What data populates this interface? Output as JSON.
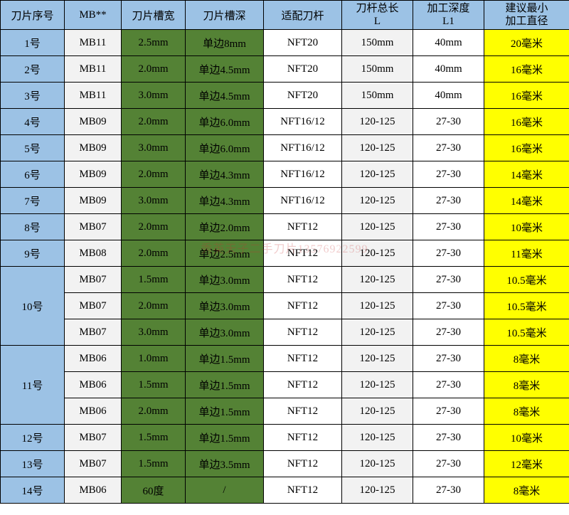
{
  "table": {
    "headers": [
      "刀片序号",
      "MB**",
      "刀片槽宽",
      "刀片槽深",
      "适配刀杆",
      "刀杆总长\nL",
      "加工深度\nL1",
      "建议最小\n加工直径"
    ],
    "col_widths": [
      "90px",
      "80px",
      "90px",
      "110px",
      "110px",
      "100px",
      "100px",
      "120px"
    ],
    "header_bg": "#9cc2e5",
    "colors": {
      "seq_bg": "#9cc2e5",
      "mb_bg": "#f2f2f2",
      "slot_bg": "#548235",
      "bar_bg": "#ffffff",
      "len_bg": "#f2f2f2",
      "l1_bg": "#ffffff",
      "min_bg": "#ffff00",
      "border": "#000000"
    },
    "rows": [
      {
        "seq": "1号",
        "mb": "MB11",
        "w": "2.5mm",
        "d": "单边8mm",
        "bar": "NFT20",
        "len": "150mm",
        "l1": "40mm",
        "min": "20毫米"
      },
      {
        "seq": "2号",
        "mb": "MB11",
        "w": "2.0mm",
        "d": "单边4.5mm",
        "bar": "NFT20",
        "len": "150mm",
        "l1": "40mm",
        "min": "16毫米"
      },
      {
        "seq": "3号",
        "mb": "MB11",
        "w": "3.0mm",
        "d": "单边4.5mm",
        "bar": "NFT20",
        "len": "150mm",
        "l1": "40mm",
        "min": "16毫米"
      },
      {
        "seq": "4号",
        "mb": "MB09",
        "w": "2.0mm",
        "d": "单边6.0mm",
        "bar": "NFT16/12",
        "len": "120-125",
        "l1": "27-30",
        "min": "16毫米"
      },
      {
        "seq": "5号",
        "mb": "MB09",
        "w": "3.0mm",
        "d": "单边6.0mm",
        "bar": "NFT16/12",
        "len": "120-125",
        "l1": "27-30",
        "min": "16毫米"
      },
      {
        "seq": "6号",
        "mb": "MB09",
        "w": "2.0mm",
        "d": "单边4.3mm",
        "bar": "NFT16/12",
        "len": "120-125",
        "l1": "27-30",
        "min": "14毫米"
      },
      {
        "seq": "7号",
        "mb": "MB09",
        "w": "3.0mm",
        "d": "单边4.3mm",
        "bar": "NFT16/12",
        "len": "120-125",
        "l1": "27-30",
        "min": "14毫米"
      },
      {
        "seq": "8号",
        "mb": "MB07",
        "w": "2.0mm",
        "d": "单边2.0mm",
        "bar": "NFT12",
        "len": "120-125",
        "l1": "27-30",
        "min": "10毫米"
      },
      {
        "seq": "9号",
        "mb": "MB08",
        "w": "2.0mm",
        "d": "单边2.5mm",
        "bar": "NFT12",
        "len": "120-125",
        "l1": "27-30",
        "min": "11毫米"
      },
      {
        "seq": "10号",
        "span": 3,
        "sub": [
          {
            "mb": "MB07",
            "w": "1.5mm",
            "d": "单边3.0mm",
            "bar": "NFT12",
            "len": "120-125",
            "l1": "27-30",
            "min": "10.5毫米"
          },
          {
            "mb": "MB07",
            "w": "2.0mm",
            "d": "单边3.0mm",
            "bar": "NFT12",
            "len": "120-125",
            "l1": "27-30",
            "min": "10.5毫米"
          },
          {
            "mb": "MB07",
            "w": "3.0mm",
            "d": "单边3.0mm",
            "bar": "NFT12",
            "len": "120-125",
            "l1": "27-30",
            "min": "10.5毫米"
          }
        ]
      },
      {
        "seq": "11号",
        "span": 3,
        "sub": [
          {
            "mb": "MB06",
            "w": "1.0mm",
            "d": "单边1.5mm",
            "bar": "NFT12",
            "len": "120-125",
            "l1": "27-30",
            "min": "8毫米"
          },
          {
            "mb": "MB06",
            "w": "1.5mm",
            "d": "单边1.5mm",
            "bar": "NFT12",
            "len": "120-125",
            "l1": "27-30",
            "min": "8毫米"
          },
          {
            "mb": "MB06",
            "w": "2.0mm",
            "d": "单边1.5mm",
            "bar": "NFT12",
            "len": "120-125",
            "l1": "27-30",
            "min": "8毫米"
          }
        ]
      },
      {
        "seq": "12号",
        "mb": "MB07",
        "w": "1.5mm",
        "d": "单边1.5mm",
        "bar": "NFT12",
        "len": "120-125",
        "l1": "27-30",
        "min": "10毫米"
      },
      {
        "seq": "13号",
        "mb": "MB07",
        "w": "1.5mm",
        "d": "单边3.5mm",
        "bar": "NFT12",
        "len": "120-125",
        "l1": "27-30",
        "min": "12毫米"
      },
      {
        "seq": "14号",
        "mb": "MB06",
        "w": "60度",
        "d": "/",
        "bar": "NFT12",
        "len": "120-125",
        "l1": "27-30",
        "min": "8毫米"
      }
    ]
  },
  "watermark": "秀英天子二手刀片13576922599"
}
